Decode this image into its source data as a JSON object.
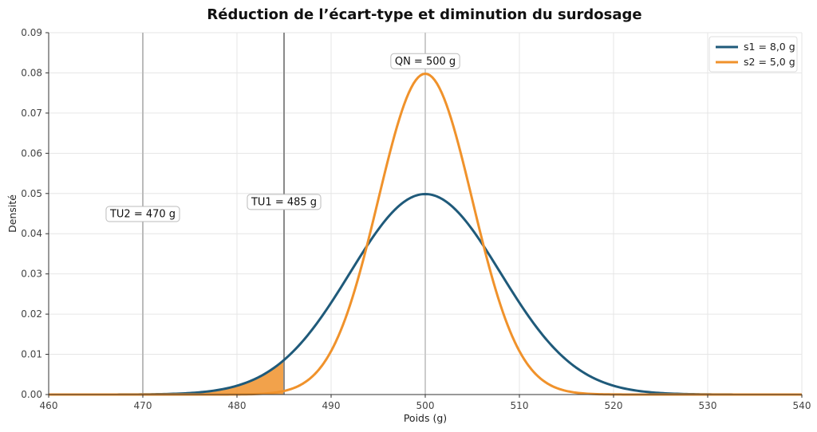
{
  "chart_data": {
    "type": "line",
    "title": "Réduction de l’écart-type et diminution du surdosage",
    "xlabel": "Poids (g)",
    "ylabel": "Densité",
    "xlim": [
      460,
      540
    ],
    "ylim": [
      0,
      0.09
    ],
    "xticks": [
      460,
      470,
      480,
      490,
      500,
      510,
      520,
      530,
      540
    ],
    "yticks": [
      0.0,
      0.01,
      0.02,
      0.03,
      0.04,
      0.05,
      0.06,
      0.07,
      0.08,
      0.09
    ],
    "xtick_labels": [
      "460",
      "470",
      "480",
      "490",
      "500",
      "510",
      "520",
      "530",
      "540"
    ],
    "ytick_labels": [
      "0.00",
      "0.01",
      "0.02",
      "0.03",
      "0.04",
      "0.05",
      "0.06",
      "0.07",
      "0.08",
      "0.09"
    ],
    "grid": true,
    "legend_position": "top-right",
    "series": [
      {
        "name": "s1 = 8,0 g",
        "distribution": "normal",
        "mean": 500,
        "sd": 8.0,
        "color": "#1f5a7a"
      },
      {
        "name": "s2 = 5,0 g",
        "distribution": "normal",
        "mean": 500,
        "sd": 5.0,
        "color": "#f0922b"
      }
    ],
    "shaded_area": {
      "series": 0,
      "from": 460,
      "to": 485,
      "color": "#f0922b"
    },
    "vertical_lines": [
      {
        "x": 470,
        "color": "#bbbbbb"
      },
      {
        "x": 485,
        "color": "#8a8a8a"
      },
      {
        "x": 500,
        "color": "#cccccc"
      }
    ],
    "annotations": [
      {
        "text": "TU2 = 470 g",
        "x": 470,
        "y": 0.045
      },
      {
        "text": "TU1 = 485 g",
        "x": 485,
        "y": 0.048
      },
      {
        "text": "QN = 500 g",
        "x": 500,
        "y": 0.083
      }
    ]
  }
}
